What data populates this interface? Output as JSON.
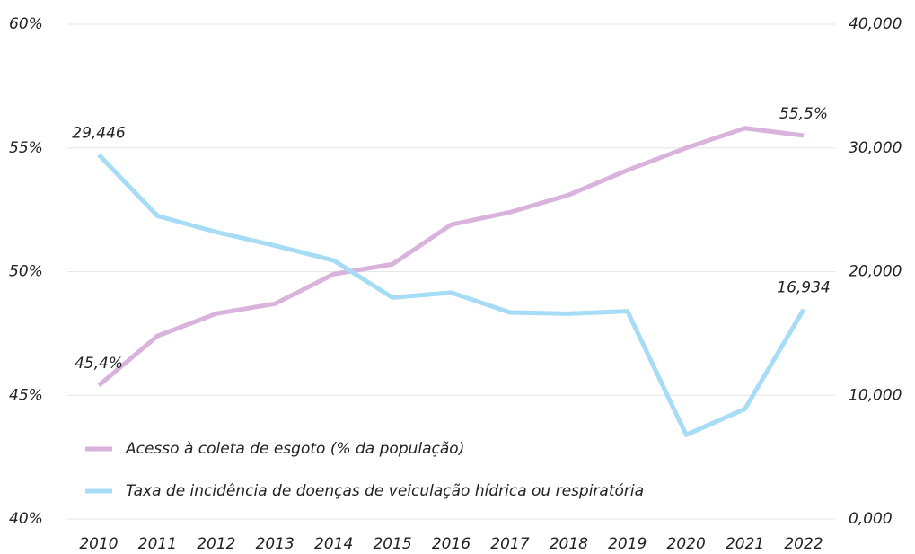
{
  "chart_data": {
    "type": "line",
    "categories": [
      "2010",
      "2011",
      "2012",
      "2013",
      "2014",
      "2015",
      "2016",
      "2017",
      "2018",
      "2019",
      "2020",
      "2021",
      "2022"
    ],
    "series": [
      {
        "name": "Acesso à coleta de esgoto (% da população)",
        "color": "#d9b3dc",
        "values": [
          45.4,
          47.4,
          48.3,
          48.7,
          49.9,
          50.3,
          51.9,
          52.4,
          53.1,
          54.1,
          55.0,
          55.8,
          55.5
        ],
        "value_labels": [
          "45,4%",
          null,
          null,
          null,
          null,
          null,
          null,
          null,
          null,
          null,
          null,
          null,
          "55,5%"
        ]
      },
      {
        "name": "Taxa de incidência de doenças de veiculação hídrica ou respiratória",
        "color": "#a6dcf6",
        "axis": "y2",
        "values": [
          29446,
          24500,
          23200,
          22100,
          20900,
          17900,
          18300,
          16700,
          16600,
          16800,
          6800,
          8900,
          16934
        ],
        "value_labels": [
          "29,446",
          null,
          null,
          null,
          null,
          null,
          null,
          null,
          null,
          null,
          null,
          null,
          "16,934"
        ]
      }
    ],
    "ylim": [
      40,
      60
    ],
    "yticks": [
      {
        "value": 40,
        "label": "40%"
      },
      {
        "value": 45,
        "label": "45%"
      },
      {
        "value": 50,
        "label": "50%"
      },
      {
        "value": 55,
        "label": "55%"
      },
      {
        "value": 60,
        "label": "60%"
      }
    ],
    "y2lim": [
      0,
      40000
    ],
    "y2ticks": [
      {
        "value": 0,
        "label": "0,000"
      },
      {
        "value": 10000,
        "label": "10,000"
      },
      {
        "value": 20000,
        "label": "20,000"
      },
      {
        "value": 30000,
        "label": "30,000"
      },
      {
        "value": 40000,
        "label": "40,000"
      }
    ],
    "grid": true,
    "legend": "lower left"
  }
}
